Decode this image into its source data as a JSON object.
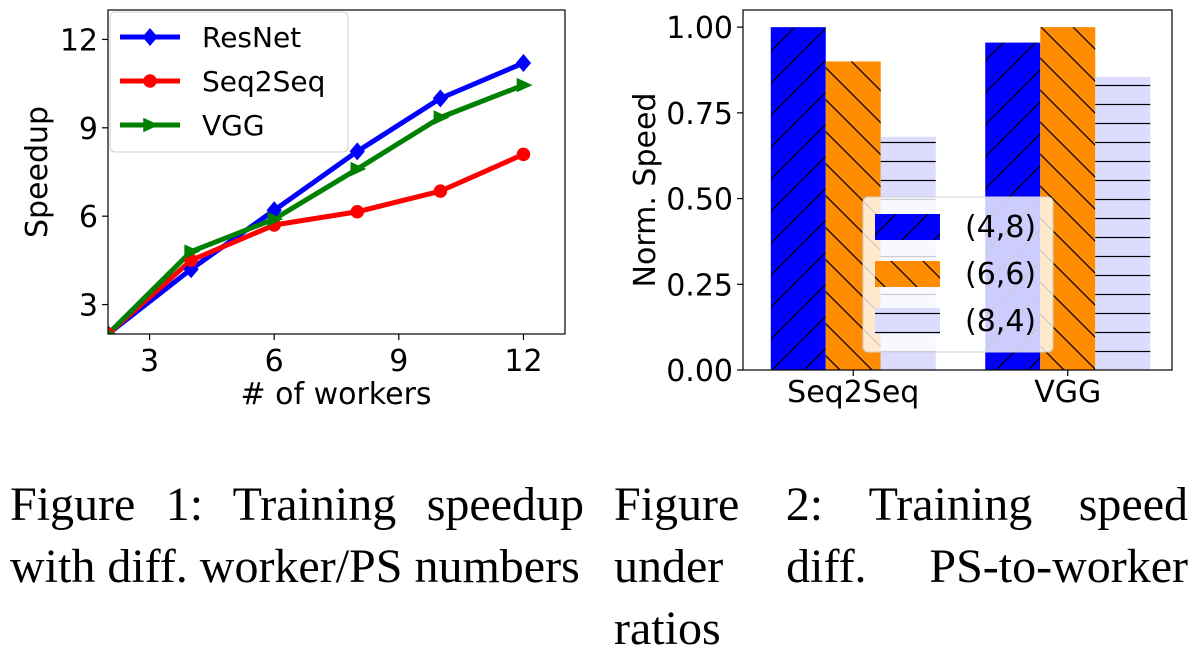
{
  "charts": [
    {
      "type": "line",
      "xlabel": "# of workers",
      "ylabel": "Speedup",
      "xlim": [
        2,
        13
      ],
      "ylim": [
        2,
        13
      ],
      "xticks": [
        3,
        6,
        9,
        12
      ],
      "yticks": [
        3,
        6,
        9,
        12
      ],
      "x": [
        2,
        4,
        6,
        8,
        10,
        12
      ],
      "grid": false,
      "legend_position": "top-left",
      "series": [
        {
          "name": "ResNet",
          "color": "#0000ff",
          "marker": "diamond",
          "values": [
            2.0,
            4.2,
            6.2,
            8.2,
            10.0,
            11.2
          ]
        },
        {
          "name": "Seq2Seq",
          "color": "#ff0000",
          "marker": "circle",
          "values": [
            2.0,
            4.5,
            5.7,
            6.15,
            6.85,
            8.1
          ]
        },
        {
          "name": "VGG",
          "color": "#008000",
          "marker": "triangle-right",
          "values": [
            2.0,
            4.8,
            5.9,
            7.6,
            9.35,
            10.45
          ]
        }
      ]
    },
    {
      "type": "bar",
      "ylabel": "Norm. Speed",
      "categories": [
        "Seq2Seq",
        "VGG"
      ],
      "ylim": [
        0,
        1.05
      ],
      "yticks": [
        "0.00",
        "0.25",
        "0.50",
        "0.75",
        "1.00"
      ],
      "grid": false,
      "legend_position": "center",
      "series": [
        {
          "name": "(4,8)",
          "color": "#0000ff",
          "hatch": "diagonal-up",
          "values": [
            1.0,
            0.955
          ]
        },
        {
          "name": "(6,6)",
          "color": "#ff8c00",
          "hatch": "diagonal-down",
          "values": [
            0.9,
            1.0
          ]
        },
        {
          "name": "(8,4)",
          "color": "#dcdcff",
          "hatch": "horizontal",
          "values": [
            0.68,
            0.855
          ]
        }
      ]
    }
  ],
  "captions": {
    "fig1": "Figure 1: Training speedup with diff. worker/PS numbers",
    "fig2": "Figure 2: Training speed under diff. PS-to-worker ratios"
  }
}
